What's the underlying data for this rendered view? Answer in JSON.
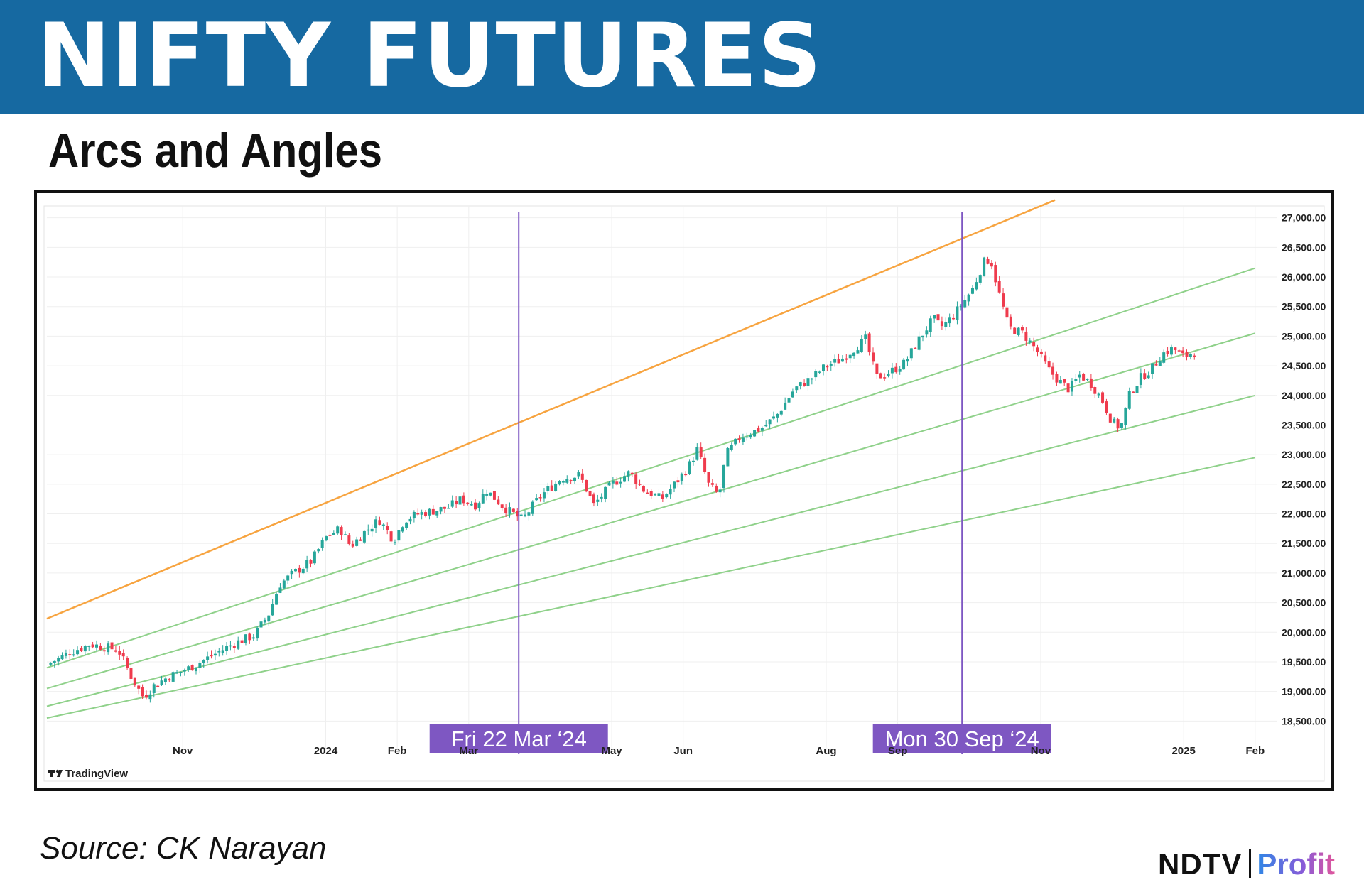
{
  "header": {
    "title": "NIFTY FUTURES",
    "subtitle": "Arcs and Angles"
  },
  "footer": {
    "source": "Source: CK Narayan",
    "logo_left": "NDTV",
    "logo_right": "Profit"
  },
  "colors": {
    "banner": "#1669a1",
    "up_candle": "#26a69a",
    "down_candle": "#ef3b4d",
    "orange_line": "#f7a440",
    "green_lines": "#8fd18a",
    "marker_line": "#7e57c2",
    "marker_tag": "#7e57c2"
  },
  "chart_data": {
    "type": "candlestick",
    "watermark": "TradingView",
    "ylim": [
      18300,
      27200
    ],
    "y_ticks": [
      "27,000.00",
      "26,500.00",
      "26,000.00",
      "25,500.00",
      "25,000.00",
      "24,500.00",
      "24,000.00",
      "23,500.00",
      "23,000.00",
      "22,500.00",
      "22,000.00",
      "21,500.00",
      "21,000.00",
      "20,500.00",
      "20,000.00",
      "19,500.00",
      "19,000.00",
      "18,500.00"
    ],
    "x_ticks": [
      {
        "label": "Nov",
        "t": 1.0
      },
      {
        "label": "2024",
        "t": 3.0
      },
      {
        "label": "Feb",
        "t": 4.0
      },
      {
        "label": "Mar",
        "t": 5.0
      },
      {
        "label": "May",
        "t": 7.0
      },
      {
        "label": "Jun",
        "t": 8.0
      },
      {
        "label": "Aug",
        "t": 10.0
      },
      {
        "label": "Sep",
        "t": 11.0
      },
      {
        "label": "Nov",
        "t": 13.0
      },
      {
        "label": "2025",
        "t": 15.0
      },
      {
        "label": "Feb",
        "t": 16.0
      }
    ],
    "time_unit": "months since October 2023",
    "xlim": [
      -0.9,
      16.3
    ],
    "markers": [
      {
        "t": 5.7,
        "label": "Fri 22 Mar ‘24"
      },
      {
        "t": 11.9,
        "label": "Mon 30 Sep ‘24"
      }
    ],
    "trend_lines": [
      {
        "role": "top",
        "points": [
          [
            -0.9,
            20230
          ],
          [
            13.2,
            27300
          ]
        ]
      },
      {
        "role": "angle",
        "points": [
          [
            -0.9,
            19400
          ],
          [
            16.0,
            26150
          ]
        ]
      },
      {
        "role": "angle",
        "points": [
          [
            -0.9,
            19050
          ],
          [
            16.0,
            25050
          ]
        ]
      },
      {
        "role": "angle",
        "points": [
          [
            -0.9,
            18750
          ],
          [
            16.0,
            24000
          ]
        ]
      },
      {
        "role": "angle",
        "points": [
          [
            -0.9,
            18550
          ],
          [
            16.0,
            22950
          ]
        ]
      }
    ],
    "price_path": [
      [
        -0.9,
        19450
      ],
      [
        -0.6,
        19650
      ],
      [
        -0.3,
        19800
      ],
      [
        0.1,
        19700
      ],
      [
        0.3,
        19200
      ],
      [
        0.45,
        18900
      ],
      [
        0.6,
        19100
      ],
      [
        0.8,
        19250
      ],
      [
        1.1,
        19400
      ],
      [
        1.4,
        19600
      ],
      [
        1.7,
        19800
      ],
      [
        2.0,
        19950
      ],
      [
        2.2,
        20300
      ],
      [
        2.35,
        20800
      ],
      [
        2.55,
        21000
      ],
      [
        2.8,
        21200
      ],
      [
        3.0,
        21600
      ],
      [
        3.2,
        21750
      ],
      [
        3.35,
        21450
      ],
      [
        3.55,
        21700
      ],
      [
        3.75,
        21900
      ],
      [
        3.95,
        21550
      ],
      [
        4.1,
        21900
      ],
      [
        4.3,
        22000
      ],
      [
        4.5,
        22050
      ],
      [
        4.7,
        22100
      ],
      [
        4.9,
        22250
      ],
      [
        5.1,
        22150
      ],
      [
        5.25,
        22400
      ],
      [
        5.5,
        22100
      ],
      [
        5.75,
        21900
      ],
      [
        6.0,
        22300
      ],
      [
        6.3,
        22600
      ],
      [
        6.55,
        22650
      ],
      [
        6.75,
        22150
      ],
      [
        7.0,
        22500
      ],
      [
        7.25,
        22700
      ],
      [
        7.45,
        22400
      ],
      [
        7.7,
        22250
      ],
      [
        7.95,
        22600
      ],
      [
        8.1,
        22850
      ],
      [
        8.2,
        23100
      ],
      [
        8.35,
        22500
      ],
      [
        8.5,
        22300
      ],
      [
        8.6,
        23000
      ],
      [
        8.8,
        23300
      ],
      [
        9.1,
        23450
      ],
      [
        9.3,
        23650
      ],
      [
        9.55,
        24100
      ],
      [
        9.8,
        24300
      ],
      [
        10.0,
        24500
      ],
      [
        10.2,
        24600
      ],
      [
        10.35,
        24750
      ],
      [
        10.55,
        24950
      ],
      [
        10.7,
        24300
      ],
      [
        10.9,
        24400
      ],
      [
        11.1,
        24550
      ],
      [
        11.3,
        24950
      ],
      [
        11.5,
        25300
      ],
      [
        11.6,
        25150
      ],
      [
        11.75,
        25300
      ],
      [
        11.9,
        25550
      ],
      [
        12.05,
        25800
      ],
      [
        12.2,
        26250
      ],
      [
        12.3,
        26300
      ],
      [
        12.4,
        25800
      ],
      [
        12.55,
        25150
      ],
      [
        12.75,
        25050
      ],
      [
        12.95,
        24750
      ],
      [
        13.1,
        24450
      ],
      [
        13.25,
        24250
      ],
      [
        13.4,
        24100
      ],
      [
        13.55,
        24350
      ],
      [
        13.7,
        24200
      ],
      [
        13.85,
        23950
      ],
      [
        14.0,
        23550
      ],
      [
        14.12,
        23450
      ],
      [
        14.25,
        24050
      ],
      [
        14.4,
        24300
      ],
      [
        14.55,
        24450
      ],
      [
        14.7,
        24700
      ],
      [
        14.85,
        24800
      ],
      [
        15.0,
        24650
      ],
      [
        15.15,
        24750
      ]
    ]
  }
}
